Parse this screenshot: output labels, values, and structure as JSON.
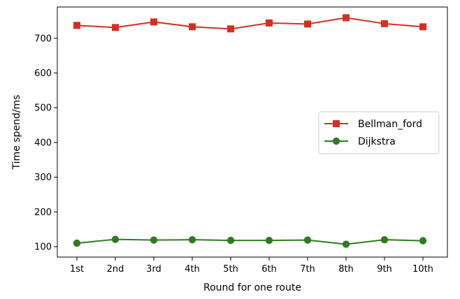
{
  "chart_data": {
    "type": "line",
    "categories": [
      "1st",
      "2nd",
      "3rd",
      "4th",
      "5th",
      "6th",
      "7th",
      "8th",
      "9th",
      "10th"
    ],
    "series": [
      {
        "name": "Bellman_ford",
        "values": [
          737,
          731,
          747,
          733,
          727,
          744,
          741,
          759,
          742,
          733
        ],
        "color": "#d62f22",
        "marker": "square"
      },
      {
        "name": "Dijkstra",
        "values": [
          110,
          121,
          119,
          120,
          118,
          118,
          119,
          107,
          120,
          117
        ],
        "color": "#2e7d1f",
        "marker": "circle"
      }
    ],
    "xlabel": "Round for one route",
    "ylabel": "Time spend/ms",
    "ylim": [
      70,
      790
    ],
    "yticks": [
      100,
      200,
      300,
      400,
      500,
      600,
      700
    ],
    "legend_position": "right",
    "grid": false
  }
}
